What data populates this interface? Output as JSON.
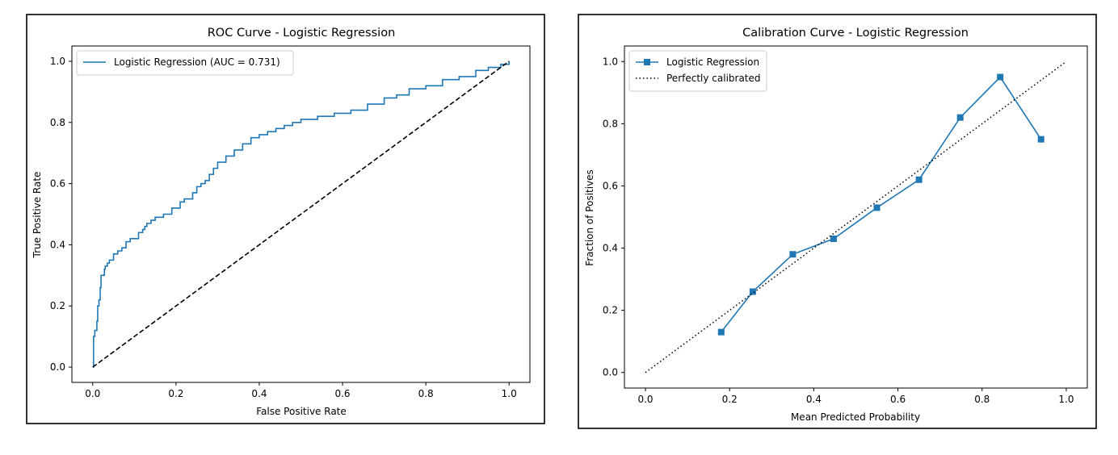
{
  "chart_data": [
    {
      "type": "line",
      "title": "ROC Curve - Logistic Regression",
      "xlabel": "False Positive Rate",
      "ylabel": "True Positive Rate",
      "xlim": [
        -0.05,
        1.05
      ],
      "ylim": [
        -0.05,
        1.05
      ],
      "xticks": [
        "0.0",
        "0.2",
        "0.4",
        "0.6",
        "0.8",
        "1.0"
      ],
      "yticks": [
        "0.0",
        "0.2",
        "0.4",
        "0.6",
        "0.8",
        "1.0"
      ],
      "legend_position": "upper-left",
      "grid": false,
      "series": [
        {
          "name": "Logistic Regression (AUC = 0.731)",
          "color": "#1f77b4",
          "style": "solid",
          "x": [
            0.0,
            0.002,
            0.002,
            0.005,
            0.005,
            0.01,
            0.012,
            0.015,
            0.018,
            0.02,
            0.025,
            0.028,
            0.03,
            0.035,
            0.04,
            0.05,
            0.05,
            0.06,
            0.07,
            0.08,
            0.09,
            0.1,
            0.11,
            0.12,
            0.125,
            0.13,
            0.14,
            0.15,
            0.17,
            0.19,
            0.21,
            0.22,
            0.24,
            0.25,
            0.26,
            0.27,
            0.28,
            0.29,
            0.3,
            0.32,
            0.34,
            0.36,
            0.38,
            0.4,
            0.42,
            0.44,
            0.46,
            0.48,
            0.5,
            0.54,
            0.58,
            0.62,
            0.66,
            0.7,
            0.73,
            0.76,
            0.8,
            0.84,
            0.88,
            0.92,
            0.95,
            0.98,
            1.0
          ],
          "y": [
            0.0,
            0.02,
            0.1,
            0.1,
            0.12,
            0.15,
            0.2,
            0.22,
            0.26,
            0.3,
            0.3,
            0.32,
            0.33,
            0.34,
            0.35,
            0.36,
            0.37,
            0.38,
            0.39,
            0.41,
            0.42,
            0.42,
            0.44,
            0.45,
            0.46,
            0.47,
            0.48,
            0.49,
            0.5,
            0.52,
            0.54,
            0.55,
            0.57,
            0.59,
            0.6,
            0.61,
            0.63,
            0.65,
            0.67,
            0.69,
            0.71,
            0.73,
            0.75,
            0.76,
            0.77,
            0.78,
            0.79,
            0.8,
            0.81,
            0.82,
            0.83,
            0.84,
            0.86,
            0.88,
            0.89,
            0.91,
            0.92,
            0.94,
            0.95,
            0.97,
            0.98,
            0.99,
            1.0
          ]
        },
        {
          "name": "",
          "color": "#000000",
          "style": "dashed",
          "x": [
            0.0,
            1.0
          ],
          "y": [
            0.0,
            1.0
          ]
        }
      ]
    },
    {
      "type": "line",
      "title": "Calibration Curve - Logistic Regression",
      "xlabel": "Mean Predicted Probability",
      "ylabel": "Fraction of Positives",
      "xlim": [
        -0.05,
        1.05
      ],
      "ylim": [
        -0.05,
        1.05
      ],
      "xticks": [
        "0.0",
        "0.2",
        "0.4",
        "0.6",
        "0.8",
        "1.0"
      ],
      "yticks": [
        "0.0",
        "0.2",
        "0.4",
        "0.6",
        "0.8",
        "1.0"
      ],
      "legend_position": "upper-left",
      "grid": false,
      "series": [
        {
          "name": "Logistic Regression",
          "color": "#1f77b4",
          "style": "solid",
          "marker": "square",
          "x": [
            0.18,
            0.255,
            0.35,
            0.447,
            0.55,
            0.65,
            0.748,
            0.843,
            0.94
          ],
          "y": [
            0.13,
            0.26,
            0.38,
            0.43,
            0.53,
            0.62,
            0.82,
            0.95,
            0.75
          ]
        },
        {
          "name": "Perfectly calibrated",
          "color": "#000000",
          "style": "dotted",
          "x": [
            0.0,
            1.0
          ],
          "y": [
            0.0,
            1.0
          ]
        }
      ]
    }
  ]
}
